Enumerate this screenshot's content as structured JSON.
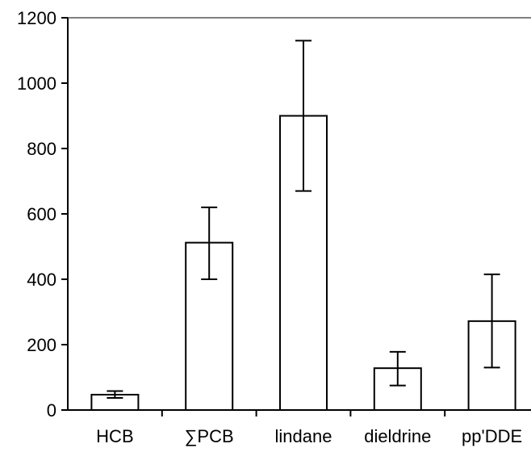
{
  "chart_data": {
    "type": "bar",
    "title": "",
    "xlabel": "",
    "ylabel": "",
    "categories": [
      "HCB",
      "∑PCB",
      "lindane",
      "dieldrine",
      "pp'DDE"
    ],
    "values": [
      47,
      512,
      900,
      128,
      272
    ],
    "error_low": [
      37,
      400,
      670,
      75,
      130
    ],
    "error_high": [
      58,
      620,
      1130,
      178,
      415
    ],
    "ylim": [
      0,
      1200
    ],
    "yticks": [
      0,
      200,
      400,
      600,
      800,
      1000,
      1200
    ],
    "ytick_labels": [
      "0",
      "200",
      "400",
      "600",
      "800",
      "1000",
      "1200"
    ],
    "grid": false,
    "legend": "none",
    "colors": {
      "bar_fill": "#ffffff",
      "bar_stroke": "#000000",
      "axis": "#000000",
      "top_line": "#808080"
    }
  }
}
